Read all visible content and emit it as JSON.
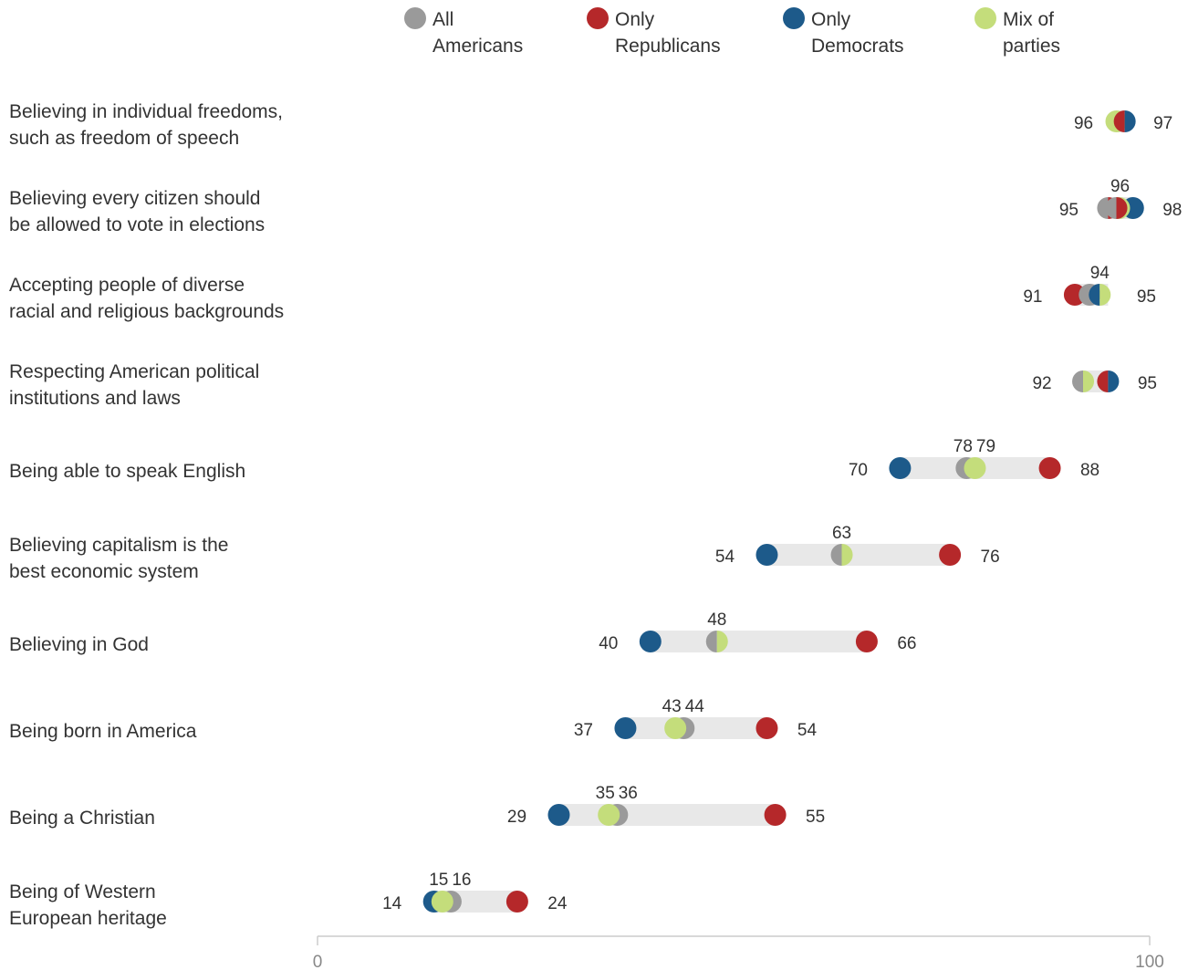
{
  "chart_data": {
    "type": "scatter",
    "subtype": "dot-range",
    "title": "",
    "xlabel": "",
    "ylabel": "",
    "xlim": [
      0,
      100
    ],
    "ticks": [
      "0",
      "100"
    ],
    "grid": false,
    "legend_placement": "top",
    "categories": [
      [
        "Believing in individual freedoms,",
        "such as freedom of speech"
      ],
      [
        "Believing every citizen should",
        "be allowed to vote in elections"
      ],
      [
        "Accepting people of diverse",
        "racial and religious backgrounds"
      ],
      [
        "Respecting American political",
        "institutions and laws"
      ],
      [
        "Being able to speak English"
      ],
      [
        "Believing capitalism is the",
        "best economic system"
      ],
      [
        "Believing in God"
      ],
      [
        "Being born in America"
      ],
      [
        "Being a Christian"
      ],
      [
        "Being of Western",
        "European heritage"
      ]
    ],
    "series": [
      {
        "name": [
          "All",
          "Americans"
        ],
        "color": "#9a9a9a",
        "values": [
          96,
          95,
          94,
          92,
          78,
          63,
          48,
          44,
          36,
          16
        ]
      },
      {
        "name": [
          "Only",
          "Republicans"
        ],
        "color": "#b5282a",
        "values": [
          96,
          96,
          91,
          95,
          88,
          76,
          66,
          54,
          55,
          24
        ]
      },
      {
        "name": [
          "Only",
          "Democrats"
        ],
        "color": "#1d5a8a",
        "values": [
          97,
          98,
          94,
          95,
          70,
          54,
          40,
          37,
          29,
          14
        ]
      },
      {
        "name": [
          "Mix of",
          "parties"
        ],
        "color": "#c4dd7b",
        "values": [
          96,
          96,
          95,
          92,
          79,
          63,
          48,
          43,
          35,
          15
        ]
      }
    ],
    "data_labels": [
      [
        "96",
        "97"
      ],
      [
        "96",
        "95",
        "98"
      ],
      [
        "94",
        "91",
        "95"
      ],
      [
        "92",
        "95"
      ],
      [
        "78",
        "79",
        "70",
        "88"
      ],
      [
        "63",
        "54",
        "76"
      ],
      [
        "48",
        "40",
        "66"
      ],
      [
        "43",
        "44",
        "37",
        "54"
      ],
      [
        "35",
        "36",
        "29",
        "55"
      ],
      [
        "15",
        "16",
        "14",
        "24"
      ]
    ],
    "range_bar_color": "#e8e8e8"
  }
}
